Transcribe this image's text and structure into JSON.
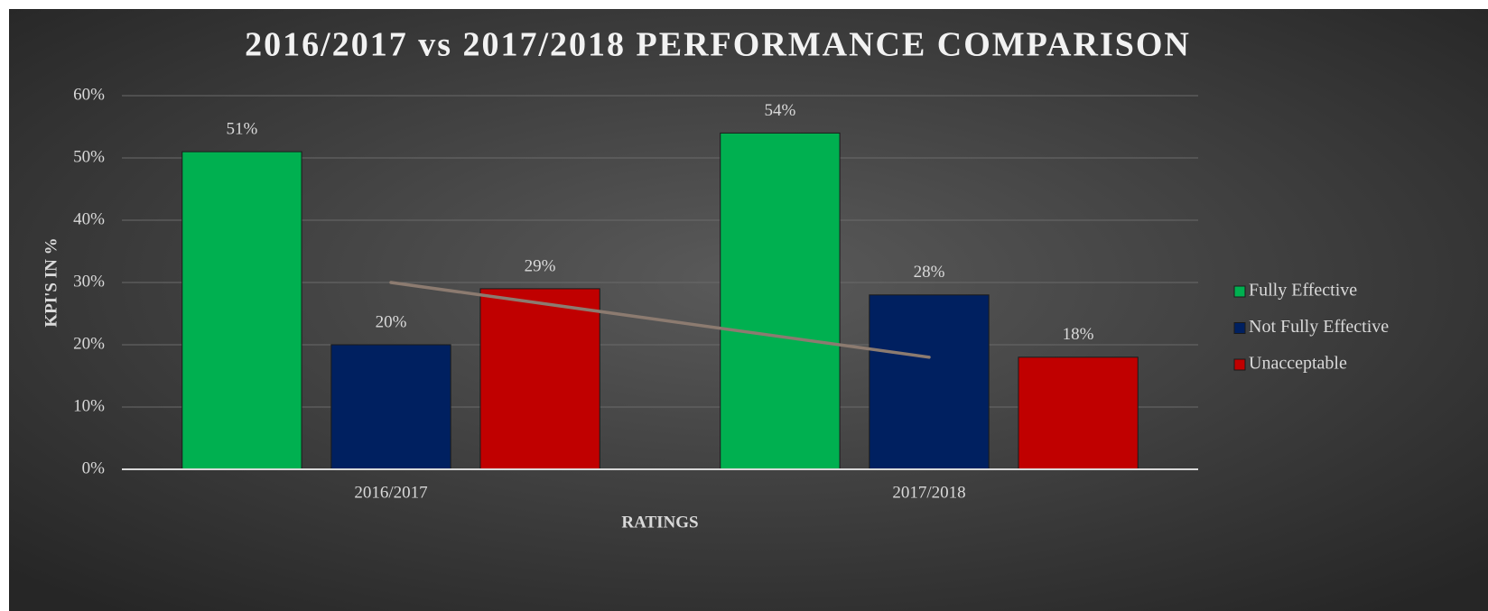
{
  "chart_data": {
    "type": "bar",
    "title": "2016/2017  vs 2017/2018 PERFORMANCE COMPARISON",
    "y_label": "KPI'S IN %",
    "x_label": "RATINGS",
    "categories": [
      "2016/2017",
      "2017/2018"
    ],
    "series": [
      {
        "name": "Fully Effective",
        "color": "#00b050",
        "values": [
          51,
          54
        ],
        "value_labels": [
          "51%",
          "54%"
        ]
      },
      {
        "name": "Not Fully Effective",
        "color": "#002060",
        "values": [
          20,
          28
        ],
        "value_labels": [
          "20%",
          "28%"
        ]
      },
      {
        "name": "Unacceptable",
        "color": "#c00000",
        "values": [
          29,
          18
        ],
        "value_labels": [
          "29%",
          "18%"
        ]
      }
    ],
    "trendline": {
      "color": "#8c7b70",
      "values": [
        30,
        18
      ]
    },
    "ylim": [
      0,
      60
    ],
    "yticks": [
      {
        "value": 0,
        "label": "0%"
      },
      {
        "value": 10,
        "label": "10%"
      },
      {
        "value": 20,
        "label": "20%"
      },
      {
        "value": 30,
        "label": "30%"
      },
      {
        "value": 40,
        "label": "40%"
      },
      {
        "value": 50,
        "label": "50%"
      },
      {
        "value": 60,
        "label": "60%"
      }
    ],
    "grid": true,
    "legend": "right"
  }
}
